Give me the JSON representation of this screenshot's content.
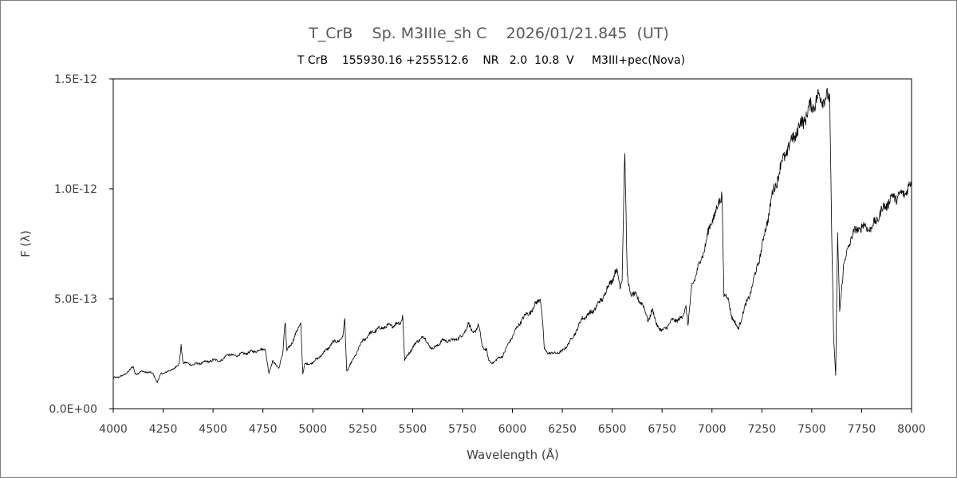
{
  "chart_data": {
    "type": "line",
    "title": "T_CrB    Sp. M3IIIe_sh C    2026/01/21.845  (UT)",
    "subtitle": "T CrB    155930.16 +255512.6    NR   2.0  10.8  V     M3III+pec(Nova)",
    "xlabel": "Wavelength (Å)",
    "ylabel": "F (λ)",
    "xlim": [
      4000,
      8000
    ],
    "ylim": [
      0,
      1.5e-12
    ],
    "grid": false,
    "x_ticks": [
      "4000",
      "4250",
      "4500",
      "4750",
      "5000",
      "5250",
      "5500",
      "5750",
      "6000",
      "6250",
      "6500",
      "6750",
      "7000",
      "7250",
      "7500",
      "7750",
      "8000"
    ],
    "y_ticks": [
      "0.0E+00",
      "5.0E-13",
      "1.0E-12",
      "1.5E-12"
    ],
    "line_color": "#000000",
    "series": [
      {
        "x": [
          4000,
          4050,
          4100,
          4110,
          4120,
          4150,
          4200,
          4220,
          4240,
          4280,
          4330,
          4340,
          4350,
          4400,
          4450,
          4500,
          4550,
          4570,
          4600,
          4650,
          4700,
          4750,
          4760,
          4780,
          4800,
          4830,
          4850,
          4861,
          4870,
          4900,
          4940,
          4950,
          4960,
          5000,
          5050,
          5100,
          5150,
          5160,
          5170,
          5200,
          5250,
          5300,
          5350,
          5400,
          5440,
          5450,
          5460,
          5500,
          5550,
          5600,
          5650,
          5700,
          5750,
          5780,
          5800,
          5830,
          5850,
          5870,
          5880,
          5890,
          5900,
          5950,
          6000,
          6050,
          6100,
          6140,
          6150,
          6160,
          6170,
          6200,
          6250,
          6300,
          6350,
          6400,
          6450,
          6500,
          6520,
          6540,
          6550,
          6563,
          6575,
          6590,
          6620,
          6650,
          6680,
          6700,
          6720,
          6750,
          6800,
          6850,
          6870,
          6880,
          6900,
          6950,
          7000,
          7040,
          7050,
          7060,
          7080,
          7100,
          7130,
          7150,
          7200,
          7250,
          7300,
          7350,
          7400,
          7450,
          7500,
          7530,
          7560,
          7590,
          7600,
          7610,
          7620,
          7625,
          7630,
          7640,
          7660,
          7680,
          7700,
          7750,
          7800,
          7850,
          7900,
          7950,
          8000
        ],
        "y": [
          1.4e-13,
          1.5e-13,
          1.9e-13,
          1.6e-13,
          1.6e-13,
          1.7e-13,
          1.6e-13,
          1.2e-13,
          1.6e-13,
          1.7e-13,
          2e-13,
          2.9e-13,
          2.1e-13,
          2e-13,
          2.1e-13,
          2.2e-13,
          2.2e-13,
          2.5e-13,
          2.4e-13,
          2.5e-13,
          2.6e-13,
          2.7e-13,
          2.8e-13,
          1.6e-13,
          2.2e-13,
          1.8e-13,
          2.6e-13,
          4e-13,
          2.6e-13,
          3.1e-13,
          3.9e-13,
          1.6e-13,
          2e-13,
          2.1e-13,
          2.5e-13,
          3e-13,
          3.2e-13,
          4.1e-13,
          1.7e-13,
          2.2e-13,
          3.1e-13,
          3.5e-13,
          3.7e-13,
          3.8e-13,
          3.9e-13,
          4.3e-13,
          2.2e-13,
          2.8e-13,
          3.3e-13,
          2.7e-13,
          3.1e-13,
          3.1e-13,
          3.3e-13,
          3.9e-13,
          3.4e-13,
          3.8e-13,
          2.8e-13,
          2.7e-13,
          2.2e-13,
          2.1e-13,
          2.1e-13,
          2.4e-13,
          3.3e-13,
          4.1e-13,
          4.5e-13,
          5.1e-13,
          4.1e-13,
          2.7e-13,
          2.6e-13,
          2.5e-13,
          2.6e-13,
          3.2e-13,
          4.1e-13,
          4.4e-13,
          5e-13,
          5.9e-13,
          6.3e-13,
          5.6e-13,
          6e-13,
          1.18e-12,
          6.1e-13,
          5.3e-13,
          5.1e-13,
          4.8e-13,
          4e-13,
          4.5e-13,
          3.9e-13,
          3.5e-13,
          4e-13,
          4.1e-13,
          4.7e-13,
          3.8e-13,
          5.6e-13,
          6.9e-13,
          8.6e-13,
          9.4e-13,
          9.9e-13,
          5.2e-13,
          5e-13,
          4.2e-13,
          3.6e-13,
          4.2e-13,
          5.5e-13,
          7.3e-13,
          9.6e-13,
          1.12e-12,
          1.22e-12,
          1.3e-12,
          1.38e-12,
          1.41e-12,
          1.42e-12,
          1.4e-12,
          8e-13,
          3.2e-13,
          1.5e-13,
          5e-13,
          7.8e-13,
          4.5e-13,
          6.5e-13,
          7.2e-13,
          7.9e-13,
          8.3e-13,
          8.2e-13,
          9e-13,
          9.6e-13,
          9.7e-13,
          1.02e-12
        ]
      }
    ]
  }
}
